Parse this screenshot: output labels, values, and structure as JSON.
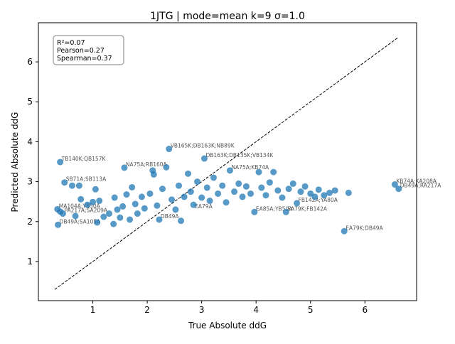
{
  "chart_data": {
    "type": "scatter",
    "title": "1JTG | mode=mean k=9 σ=1.0",
    "xlabel": "True Absolute ddG",
    "ylabel": "Predicted Absolute ddG",
    "xlim": [
      0.0,
      6.95
    ],
    "ylim": [
      0.02,
      6.98
    ],
    "xticks": [
      1,
      2,
      3,
      4,
      5,
      6
    ],
    "yticks": [
      1,
      2,
      3,
      4,
      5,
      6
    ],
    "grid": false,
    "point_color": "#1f77b4",
    "diagonal": {
      "from": [
        0.3,
        0.3
      ],
      "to": [
        6.6,
        6.6
      ],
      "style": "dashed",
      "color": "#000000"
    },
    "stats_box": {
      "position": "top-left",
      "lines": [
        "R²=0.07",
        "Pearson=0.27",
        "Spearman=0.37"
      ]
    },
    "points": [
      {
        "x": 0.35,
        "y": 2.31
      },
      {
        "x": 0.4,
        "y": 2.25
      },
      {
        "x": 0.45,
        "y": 2.2
      },
      {
        "x": 0.36,
        "y": 1.92
      },
      {
        "x": 0.4,
        "y": 3.49
      },
      {
        "x": 0.48,
        "y": 2.98
      },
      {
        "x": 0.62,
        "y": 2.9
      },
      {
        "x": 0.75,
        "y": 2.9
      },
      {
        "x": 0.68,
        "y": 2.14
      },
      {
        "x": 0.78,
        "y": 2.56
      },
      {
        "x": 0.9,
        "y": 2.42
      },
      {
        "x": 1.0,
        "y": 2.49
      },
      {
        "x": 1.05,
        "y": 2.81
      },
      {
        "x": 1.08,
        "y": 1.98
      },
      {
        "x": 1.12,
        "y": 2.52
      },
      {
        "x": 1.2,
        "y": 2.12
      },
      {
        "x": 1.3,
        "y": 2.2
      },
      {
        "x": 1.38,
        "y": 1.94
      },
      {
        "x": 1.4,
        "y": 2.6
      },
      {
        "x": 1.45,
        "y": 2.3
      },
      {
        "x": 1.5,
        "y": 2.1
      },
      {
        "x": 1.55,
        "y": 2.38
      },
      {
        "x": 1.58,
        "y": 3.35
      },
      {
        "x": 1.62,
        "y": 2.68
      },
      {
        "x": 1.68,
        "y": 2.05
      },
      {
        "x": 1.72,
        "y": 2.86
      },
      {
        "x": 1.78,
        "y": 2.44
      },
      {
        "x": 1.82,
        "y": 2.2
      },
      {
        "x": 1.9,
        "y": 2.62
      },
      {
        "x": 1.95,
        "y": 2.33
      },
      {
        "x": 2.05,
        "y": 2.7
      },
      {
        "x": 2.1,
        "y": 3.28
      },
      {
        "x": 2.12,
        "y": 3.18
      },
      {
        "x": 2.18,
        "y": 2.4
      },
      {
        "x": 2.22,
        "y": 2.05
      },
      {
        "x": 2.28,
        "y": 2.82
      },
      {
        "x": 2.35,
        "y": 3.36
      },
      {
        "x": 2.4,
        "y": 3.82
      },
      {
        "x": 2.45,
        "y": 2.55
      },
      {
        "x": 2.52,
        "y": 2.3
      },
      {
        "x": 2.58,
        "y": 2.9
      },
      {
        "x": 2.62,
        "y": 2.02
      },
      {
        "x": 2.68,
        "y": 2.62
      },
      {
        "x": 2.75,
        "y": 3.2
      },
      {
        "x": 2.8,
        "y": 2.75
      },
      {
        "x": 2.85,
        "y": 2.42
      },
      {
        "x": 2.92,
        "y": 3.0
      },
      {
        "x": 3.0,
        "y": 2.6
      },
      {
        "x": 3.05,
        "y": 3.58
      },
      {
        "x": 3.1,
        "y": 2.85
      },
      {
        "x": 3.15,
        "y": 2.52
      },
      {
        "x": 3.22,
        "y": 3.1
      },
      {
        "x": 3.3,
        "y": 2.7
      },
      {
        "x": 3.38,
        "y": 2.9
      },
      {
        "x": 3.45,
        "y": 2.48
      },
      {
        "x": 3.52,
        "y": 3.28
      },
      {
        "x": 3.6,
        "y": 2.75
      },
      {
        "x": 3.68,
        "y": 2.95
      },
      {
        "x": 3.75,
        "y": 2.62
      },
      {
        "x": 3.82,
        "y": 2.88
      },
      {
        "x": 3.9,
        "y": 2.7
      },
      {
        "x": 3.97,
        "y": 2.24
      },
      {
        "x": 4.05,
        "y": 3.24
      },
      {
        "x": 4.1,
        "y": 2.85
      },
      {
        "x": 4.18,
        "y": 2.66
      },
      {
        "x": 4.25,
        "y": 2.98
      },
      {
        "x": 4.32,
        "y": 3.24
      },
      {
        "x": 4.4,
        "y": 2.78
      },
      {
        "x": 4.48,
        "y": 2.6
      },
      {
        "x": 4.55,
        "y": 2.24
      },
      {
        "x": 4.6,
        "y": 2.82
      },
      {
        "x": 4.68,
        "y": 2.95
      },
      {
        "x": 4.75,
        "y": 2.46
      },
      {
        "x": 4.82,
        "y": 2.75
      },
      {
        "x": 4.9,
        "y": 2.88
      },
      {
        "x": 5.0,
        "y": 2.7
      },
      {
        "x": 5.08,
        "y": 2.62
      },
      {
        "x": 5.15,
        "y": 2.8
      },
      {
        "x": 5.25,
        "y": 2.66
      },
      {
        "x": 5.35,
        "y": 2.72
      },
      {
        "x": 5.45,
        "y": 2.78
      },
      {
        "x": 5.62,
        "y": 1.76
      },
      {
        "x": 5.7,
        "y": 2.72
      },
      {
        "x": 6.55,
        "y": 2.93
      },
      {
        "x": 6.62,
        "y": 2.82
      }
    ],
    "annotations": [
      {
        "text": "TB140K;QB157K",
        "x": 0.4,
        "y": 3.49
      },
      {
        "text": "SB71A;SB113A",
        "x": 0.48,
        "y": 2.98
      },
      {
        "text": "MA104A;YB50A",
        "x": 0.35,
        "y": 2.31
      },
      {
        "text": "PA217A;SA209A",
        "x": 0.45,
        "y": 2.2
      },
      {
        "text": "DB49A;SA105A",
        "x": 0.36,
        "y": 1.92
      },
      {
        "text": "NA75A;RB160A",
        "x": 1.58,
        "y": 3.35
      },
      {
        "text": "VB165K;DB163K;NB89K",
        "x": 2.4,
        "y": 3.82
      },
      {
        "text": "DB163K;DB135K;VB134K",
        "x": 3.05,
        "y": 3.58
      },
      {
        "text": "NA75A;KB74A",
        "x": 3.52,
        "y": 3.28
      },
      {
        "text": "EA85A;YB50A",
        "x": 3.97,
        "y": 2.24
      },
      {
        "text": "EA79K;FB142A",
        "x": 4.55,
        "y": 2.24
      },
      {
        "text": "EA79K;DB49A",
        "x": 5.62,
        "y": 1.76
      },
      {
        "text": "KB74A;KA208A",
        "x": 6.55,
        "y": 2.93
      },
      {
        "text": "DB49A;RA217A",
        "x": 6.62,
        "y": 2.82
      },
      {
        "text": "FB142A;YA80A",
        "x": 4.75,
        "y": 2.46
      },
      {
        "text": "EA79A",
        "x": 2.85,
        "y": 2.3
      },
      {
        "text": "DB49A",
        "x": 2.22,
        "y": 2.05
      }
    ]
  }
}
